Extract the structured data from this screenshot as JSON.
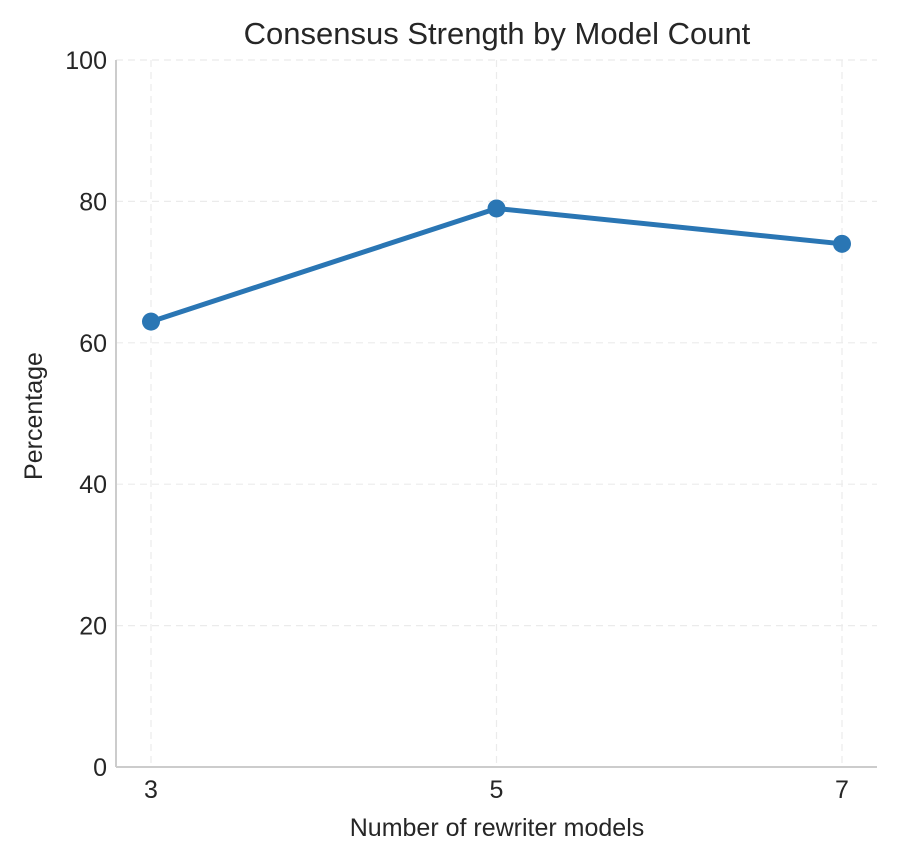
{
  "chart_data": {
    "type": "line",
    "title": "Consensus Strength by Model Count",
    "xlabel": "Number of rewriter models",
    "ylabel": "Percentage",
    "x": [
      3,
      5,
      7
    ],
    "x_tick_labels": [
      "3",
      "5",
      "7"
    ],
    "y_tick_labels": [
      "0",
      "20",
      "40",
      "60",
      "80",
      "100"
    ],
    "y_ticks": [
      0,
      20,
      40,
      60,
      80,
      100
    ],
    "ylim": [
      0,
      100
    ],
    "series": [
      {
        "values": [
          63,
          79,
          74
        ],
        "color": "#2a76b4"
      }
    ],
    "grid": true,
    "grid_color": "#ebebeb",
    "axis_color": "#cccccc"
  }
}
